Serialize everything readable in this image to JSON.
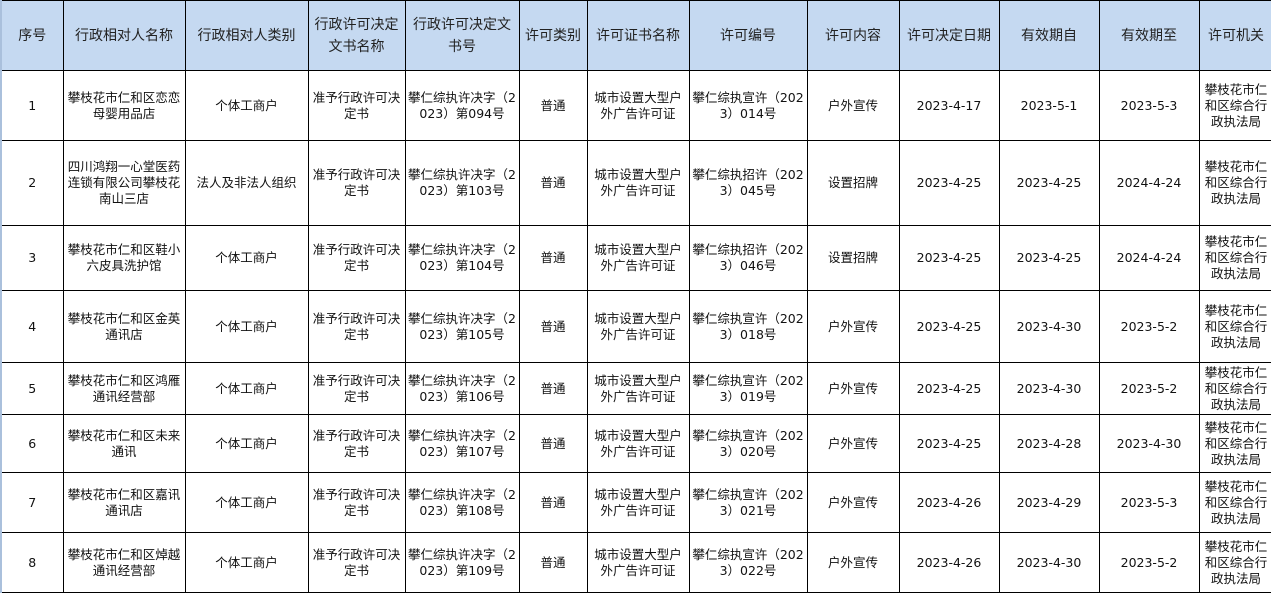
{
  "colors": {
    "header_bg": "#c5d9f1",
    "grid": "#000000"
  },
  "table": {
    "headers": [
      "序号",
      "行政相对人名称",
      "行政相对人类别",
      "行政许可决定文书名称",
      "行政许可决定文书号",
      "许可类别",
      "许可证书名称",
      "许可编号",
      "许可内容",
      "许可决定日期",
      "有效期自",
      "有效期至",
      "许可机关"
    ],
    "rows": [
      [
        "1",
        "攀枝花市仁和区恋恋母婴用品店",
        "个体工商户",
        "准予行政许可决定书",
        "攀仁综执许决字（2023）第094号",
        "普通",
        "城市设置大型户外广告许可证",
        "攀仁综执宣许（2023）014号",
        "户外宣传",
        "2023-4-17",
        "2023-5-1",
        "2023-5-3",
        "攀枝花市仁和区综合行政执法局"
      ],
      [
        "2",
        "四川鸿翔一心堂医药连锁有限公司攀枝花南山三店",
        "法人及非法人组织",
        "准予行政许可决定书",
        "攀仁综执许决字（2023）第103号",
        "普通",
        "城市设置大型户外广告许可证",
        "攀仁综执招许（2023）045号",
        "设置招牌",
        "2023-4-25",
        "2023-4-25",
        "2024-4-24",
        "攀枝花市仁和区综合行政执法局"
      ],
      [
        "3",
        "攀枝花市仁和区鞋小六皮具洗护馆",
        "个体工商户",
        "准予行政许可决定书",
        "攀仁综执许决字（2023）第104号",
        "普通",
        "城市设置大型户外广告许可证",
        "攀仁综执招许（2023）046号",
        "设置招牌",
        "2023-4-25",
        "2023-4-25",
        "2024-4-24",
        "攀枝花市仁和区综合行政执法局"
      ],
      [
        "4",
        "攀枝花市仁和区金英通讯店",
        "个体工商户",
        "准予行政许可决定书",
        "攀仁综执许决字（2023）第105号",
        "普通",
        "城市设置大型户外广告许可证",
        "攀仁综执宣许（2023）018号",
        "户外宣传",
        "2023-4-25",
        "2023-4-30",
        "2023-5-2",
        "攀枝花市仁和区综合行政执法局"
      ],
      [
        "5",
        "攀枝花市仁和区鸿雁通讯经营部",
        "个体工商户",
        "准予行政许可决定书",
        "攀仁综执许决字（2023）第106号",
        "普通",
        "城市设置大型户外广告许可证",
        "攀仁综执宣许（2023）019号",
        "户外宣传",
        "2023-4-25",
        "2023-4-30",
        "2023-5-2",
        "攀枝花市仁和区综合行政执法局"
      ],
      [
        "6",
        "攀枝花市仁和区未来通讯",
        "个体工商户",
        "准予行政许可决定书",
        "攀仁综执许决字（2023）第107号",
        "普通",
        "城市设置大型户外广告许可证",
        "攀仁综执宣许（2023）020号",
        "户外宣传",
        "2023-4-25",
        "2023-4-28",
        "2023-4-30",
        "攀枝花市仁和区综合行政执法局"
      ],
      [
        "7",
        "攀枝花市仁和区嘉讯通讯店",
        "个体工商户",
        "准予行政许可决定书",
        "攀仁综执许决字（2023）第108号",
        "普通",
        "城市设置大型户外广告许可证",
        "攀仁综执宣许（2023）021号",
        "户外宣传",
        "2023-4-26",
        "2023-4-29",
        "2023-5-3",
        "攀枝花市仁和区综合行政执法局"
      ],
      [
        "8",
        "攀枝花市仁和区焯越通讯经营部",
        "个体工商户",
        "准予行政许可决定书",
        "攀仁综执许决字（2023）第109号",
        "普通",
        "城市设置大型户外广告许可证",
        "攀仁综执宣许（2023）022号",
        "户外宣传",
        "2023-4-26",
        "2023-4-30",
        "2023-5-2",
        "攀枝花市仁和区综合行政执法局"
      ]
    ]
  }
}
